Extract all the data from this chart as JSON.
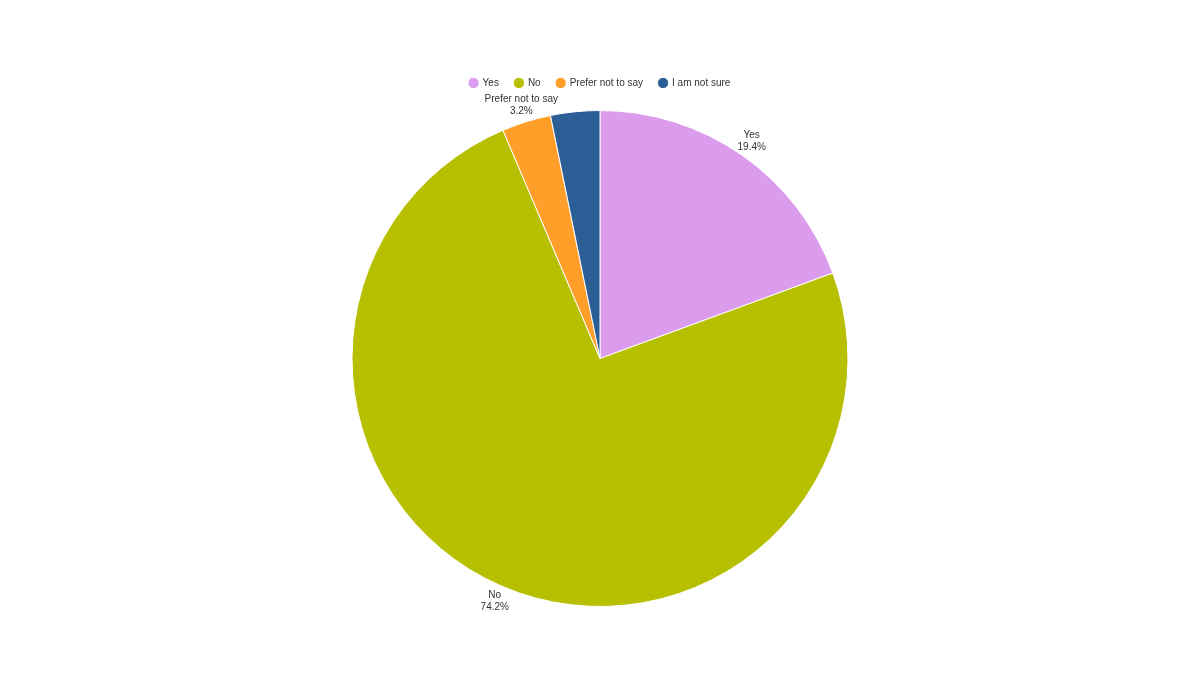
{
  "chart_data": {
    "type": "pie",
    "categories": [
      "Yes",
      "No",
      "Prefer not to say",
      "I am not sure"
    ],
    "values": [
      19.4,
      74.2,
      3.2,
      3.2
    ],
    "colors": [
      "#dc9cee",
      "#b7c000",
      "#ff9f2a",
      "#2d5f97"
    ],
    "value_labels": [
      "19.4%",
      "74.2%",
      "3.2%",
      null
    ],
    "legend": "top"
  }
}
